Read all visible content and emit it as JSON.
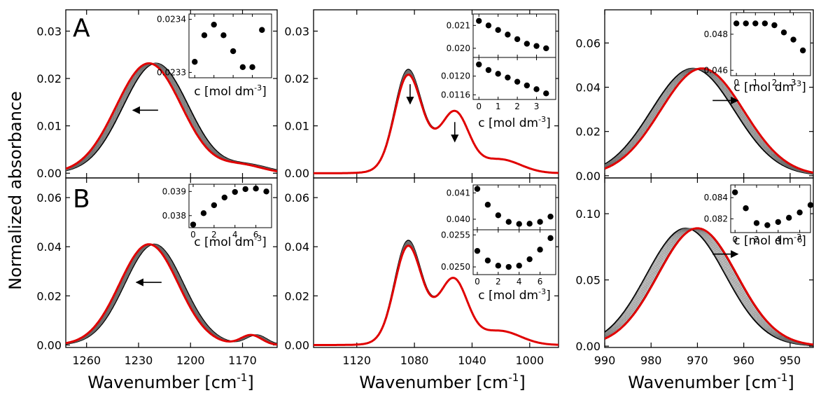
{
  "figure": {
    "ylabel": "Normalized absorbance",
    "xlabel_main": "Wavenumber [cm",
    "xlabel_sup": "-1",
    "xlabel_end": "]",
    "inset_xlabel_main": "c [mol dm",
    "inset_xlabel_sup": "-3",
    "inset_xlabel_end": "]"
  },
  "chart_data": [
    {
      "id": "A1",
      "type": "line",
      "row_label": "A",
      "xlim": [
        1272,
        1150
      ],
      "ylim": [
        -0.001,
        0.0345
      ],
      "xticks": [
        1260,
        1230,
        1200,
        1170
      ],
      "xticklabels": [],
      "yticks": [
        0,
        0.01,
        0.02,
        0.03
      ],
      "yticklabels": [
        "0.00",
        "0.01",
        "0.02",
        "0.03"
      ],
      "peaks": [
        {
          "c": 1224,
          "w": 19,
          "h": 0.0232
        },
        {
          "c": 1170,
          "w": 12,
          "h": 0.0016
        }
      ],
      "shift": 4,
      "arrow": {
        "x": 1226,
        "y": 0.0133,
        "dir": "left"
      },
      "inset": {
        "x": [
          0,
          0.5,
          1,
          1.5,
          2,
          2.5,
          3,
          3.5
        ],
        "y": [
          0.02332,
          0.02337,
          0.02339,
          0.02337,
          0.02334,
          0.02331,
          0.02331,
          0.02338
        ],
        "xlim": [
          -0.3,
          4
        ],
        "ylim": [
          0.02329,
          0.02341
        ],
        "xticks": [
          0,
          1,
          2,
          3,
          4
        ],
        "yticks": [
          0.0233,
          0.0234
        ],
        "yticklabels": [
          "0.0233",
          "0.0234"
        ]
      }
    },
    {
      "id": "A2",
      "type": "line",
      "xlim": [
        1150,
        980
      ],
      "ylim": [
        -0.001,
        0.0345
      ],
      "xticks": [
        1120,
        1080,
        1040,
        1000
      ],
      "xticklabels": [],
      "yticks": [
        0,
        0.01,
        0.02,
        0.03
      ],
      "yticklabels": [
        "0.00",
        "0.01",
        "0.02",
        "0.03"
      ],
      "peaks": [
        {
          "c": 1085,
          "w": 9,
          "h": 0.0185
        },
        {
          "c": 1051,
          "w": 9,
          "h": 0.0095
        },
        {
          "c": 1068,
          "w": 18,
          "h": 0.0052
        },
        {
          "c": 1020,
          "w": 14,
          "h": 0.0028
        }
      ],
      "shift": 0,
      "arrows": [
        {
          "x": 1083,
          "y": 0.0185,
          "dir": "down"
        },
        {
          "x": 1052,
          "y": 0.0105,
          "dir": "down"
        }
      ],
      "inset_top": {
        "x": [
          0,
          0.5,
          1,
          1.5,
          2,
          2.5,
          3,
          3.5
        ],
        "y": [
          0.0212,
          0.021,
          0.0208,
          0.0206,
          0.0204,
          0.0202,
          0.0201,
          0.02
        ],
        "xlim": [
          -0.3,
          4
        ],
        "ylim": [
          0.0196,
          0.0215
        ],
        "xticks": [
          0,
          1,
          2,
          3,
          4
        ],
        "yticks": [
          0.02,
          0.021
        ],
        "yticklabels": [
          "0.020",
          "0.021"
        ]
      },
      "inset_bottom": {
        "x": [
          0,
          0.5,
          1,
          1.5,
          2,
          2.5,
          3,
          3.5
        ],
        "y": [
          0.01225,
          0.01213,
          0.01205,
          0.01197,
          0.01188,
          0.0118,
          0.01172,
          0.01163
        ],
        "xlim": [
          -0.3,
          4
        ],
        "ylim": [
          0.0115,
          0.0124
        ],
        "xticks": [
          0,
          1,
          2,
          3
        ],
        "xticklabels": [
          "0",
          "1",
          "2",
          "3"
        ],
        "yticks": [
          0.0116,
          0.012
        ],
        "yticklabels": [
          "0.0116",
          "0.0120"
        ]
      }
    },
    {
      "id": "A3",
      "type": "line",
      "xlim": [
        990,
        945
      ],
      "ylim": [
        -0.001,
        0.075
      ],
      "xticks": [
        990,
        980,
        970,
        960,
        950
      ],
      "xticklabels": [],
      "yticks": [
        0,
        0.02,
        0.04,
        0.06
      ],
      "yticklabels": [
        "0.00",
        "0.02",
        "0.04",
        "0.06"
      ],
      "peaks": [
        {
          "c": 969,
          "w": 9,
          "h": 0.0485
        }
      ],
      "shift": -2,
      "arrow": {
        "x": 964,
        "y": 0.034,
        "dir": "right"
      },
      "inset": {
        "x": [
          0,
          0.5,
          1,
          1.5,
          2,
          2.5,
          3,
          3.5
        ],
        "y": [
          0.0486,
          0.0486,
          0.0486,
          0.0486,
          0.0485,
          0.0481,
          0.0477,
          0.0471
        ],
        "xlim": [
          -0.3,
          3.9
        ],
        "ylim": [
          0.0457,
          0.0492
        ],
        "xticks": [
          0,
          1,
          2,
          3
        ],
        "xticklabels": [
          "0",
          "1",
          "2",
          "3"
        ],
        "yticks": [
          0.046,
          0.048
        ],
        "yticklabels": [
          "0.046",
          "0.048"
        ]
      }
    },
    {
      "id": "B1",
      "type": "line",
      "row_label": "B",
      "xlim": [
        1272,
        1150
      ],
      "ylim": [
        -0.001,
        0.068
      ],
      "xticks": [
        1260,
        1230,
        1200,
        1170
      ],
      "xticklabels": [
        "1260",
        "1230",
        "1200",
        "1170"
      ],
      "yticks": [
        0,
        0.02,
        0.04,
        0.06
      ],
      "yticklabels": [
        "0.00",
        "0.02",
        "0.04",
        "0.06"
      ],
      "peaks": [
        {
          "c": 1224,
          "w": 17,
          "h": 0.041
        },
        {
          "c": 1165,
          "w": 6,
          "h": 0.004
        }
      ],
      "shift": 3,
      "arrow": {
        "x": 1224,
        "y": 0.0255,
        "dir": "left"
      },
      "inset": {
        "x": [
          0,
          1,
          2,
          3,
          4,
          5,
          6,
          7
        ],
        "y": [
          0.03763,
          0.0381,
          0.03843,
          0.03875,
          0.03898,
          0.0391,
          0.03912,
          0.039
        ],
        "xlim": [
          -0.4,
          7.5
        ],
        "ylim": [
          0.0375,
          0.0393
        ],
        "xticks": [
          0,
          2,
          4,
          6
        ],
        "xticklabels": [
          "0",
          "2",
          "4",
          "6"
        ],
        "yticks": [
          0.038,
          0.039
        ],
        "yticklabels": [
          "0.038",
          "0.039"
        ]
      }
    },
    {
      "id": "B2",
      "type": "line",
      "xlim": [
        1150,
        980
      ],
      "ylim": [
        -0.001,
        0.068
      ],
      "xticks": [
        1120,
        1080,
        1040,
        1000
      ],
      "xticklabels": [
        "1120",
        "1080",
        "1040",
        "1000"
      ],
      "yticks": [
        0,
        0.02,
        0.04,
        0.06
      ],
      "yticklabels": [
        "0.00",
        "0.02",
        "0.04",
        "0.06"
      ],
      "peaks": [
        {
          "c": 1085,
          "w": 9,
          "h": 0.036
        },
        {
          "c": 1052,
          "w": 9,
          "h": 0.02
        },
        {
          "c": 1068,
          "w": 18,
          "h": 0.01
        },
        {
          "c": 1020,
          "w": 14,
          "h": 0.0055
        }
      ],
      "shift": 0,
      "inset_top": {
        "x": [
          0,
          1,
          2,
          3,
          4,
          5,
          6,
          7
        ],
        "y": [
          0.04115,
          0.04055,
          0.04015,
          0.0399,
          0.03982,
          0.03983,
          0.0399,
          0.0401
        ],
        "xlim": [
          -0.4,
          7.5
        ],
        "ylim": [
          0.0396,
          0.0413
        ],
        "xticks": [
          0,
          2,
          4,
          6
        ],
        "yticks": [
          0.04,
          0.041
        ],
        "yticklabels": [
          "0.040",
          "0.041"
        ]
      },
      "inset_bottom": {
        "x": [
          0,
          1,
          2,
          3,
          4,
          5,
          6,
          7
        ],
        "y": [
          0.02525,
          0.0251,
          0.02502,
          0.025,
          0.02502,
          0.02512,
          0.02527,
          0.02545
        ],
        "xlim": [
          -0.4,
          7.5
        ],
        "ylim": [
          0.02488,
          0.02558
        ],
        "xticks": [
          0,
          2,
          4,
          6
        ],
        "xticklabels": [
          "0",
          "2",
          "4",
          "6"
        ],
        "yticks": [
          0.025,
          0.0255
        ],
        "yticklabels": [
          "0.0250",
          "0.0255"
        ]
      }
    },
    {
      "id": "B3",
      "type": "line",
      "xlim": [
        990,
        945
      ],
      "ylim": [
        -0.001,
        0.127
      ],
      "xticks": [
        990,
        980,
        970,
        960,
        950
      ],
      "xticklabels": [
        "990",
        "980",
        "970",
        "960",
        "950"
      ],
      "yticks": [
        0,
        0.05,
        0.1
      ],
      "yticklabels": [
        "0.00",
        "0.05",
        "0.10"
      ],
      "peaks": [
        {
          "c": 970,
          "w": 8.5,
          "h": 0.089
        }
      ],
      "shift": -2.5,
      "arrow": {
        "x": 964,
        "y": 0.0695,
        "dir": "right"
      },
      "inset": {
        "x": [
          0,
          1,
          2,
          3,
          4,
          5,
          6,
          7
        ],
        "y": [
          0.0845,
          0.083,
          0.0816,
          0.0814,
          0.0817,
          0.0821,
          0.0826,
          0.0833
        ],
        "xlim": [
          -0.4,
          7
        ],
        "ylim": [
          0.0807,
          0.0852
        ],
        "xticks": [
          0,
          2,
          4,
          6
        ],
        "xticklabels": [
          "0",
          "2",
          "4",
          "6"
        ],
        "yticks": [
          0.082,
          0.084
        ],
        "yticklabels": [
          "0.082",
          "0.084"
        ]
      }
    }
  ]
}
